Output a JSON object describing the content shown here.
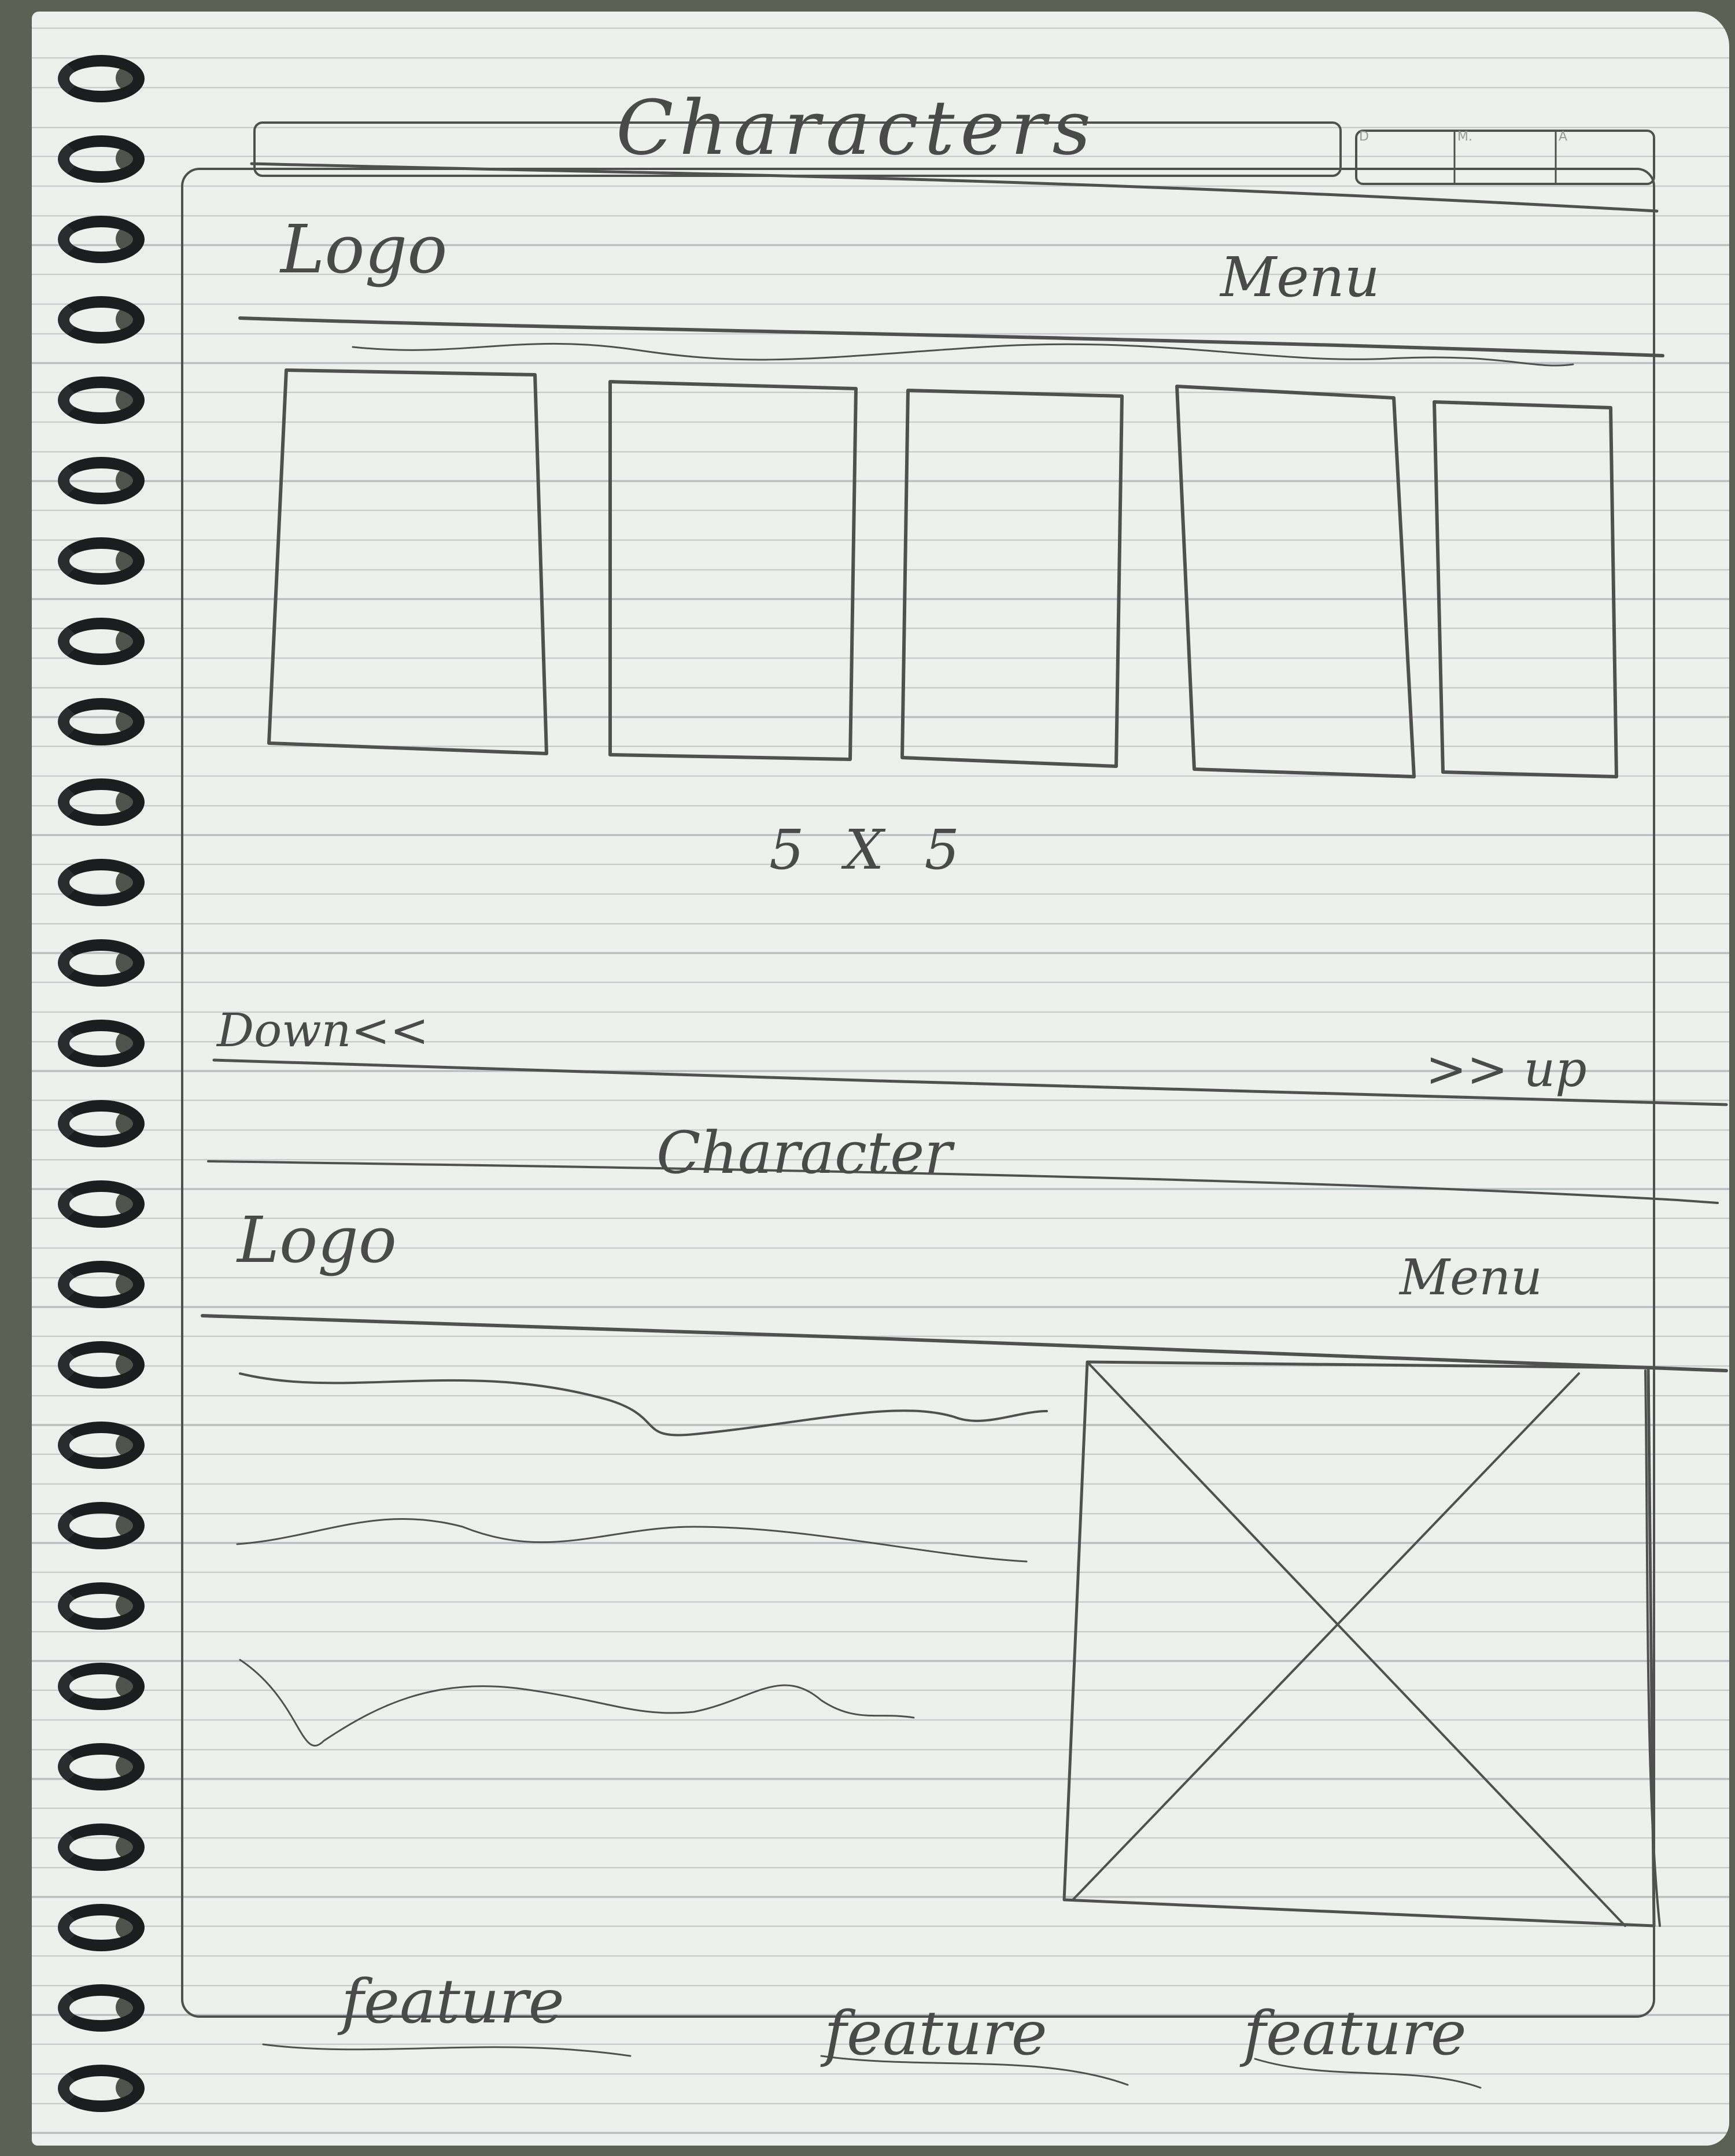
{
  "header": {
    "title": "Characters",
    "tabs": [
      "D",
      "M.",
      "A"
    ]
  },
  "section1": {
    "logo": "Logo",
    "menu": "Menu",
    "grid_label": "5 X 5"
  },
  "nav": {
    "down": "Down<<",
    "up": ">> up"
  },
  "section2": {
    "title": "Character",
    "logo": "Logo",
    "menu": "Menu"
  },
  "features": [
    "feature",
    "feature",
    "feature"
  ]
}
